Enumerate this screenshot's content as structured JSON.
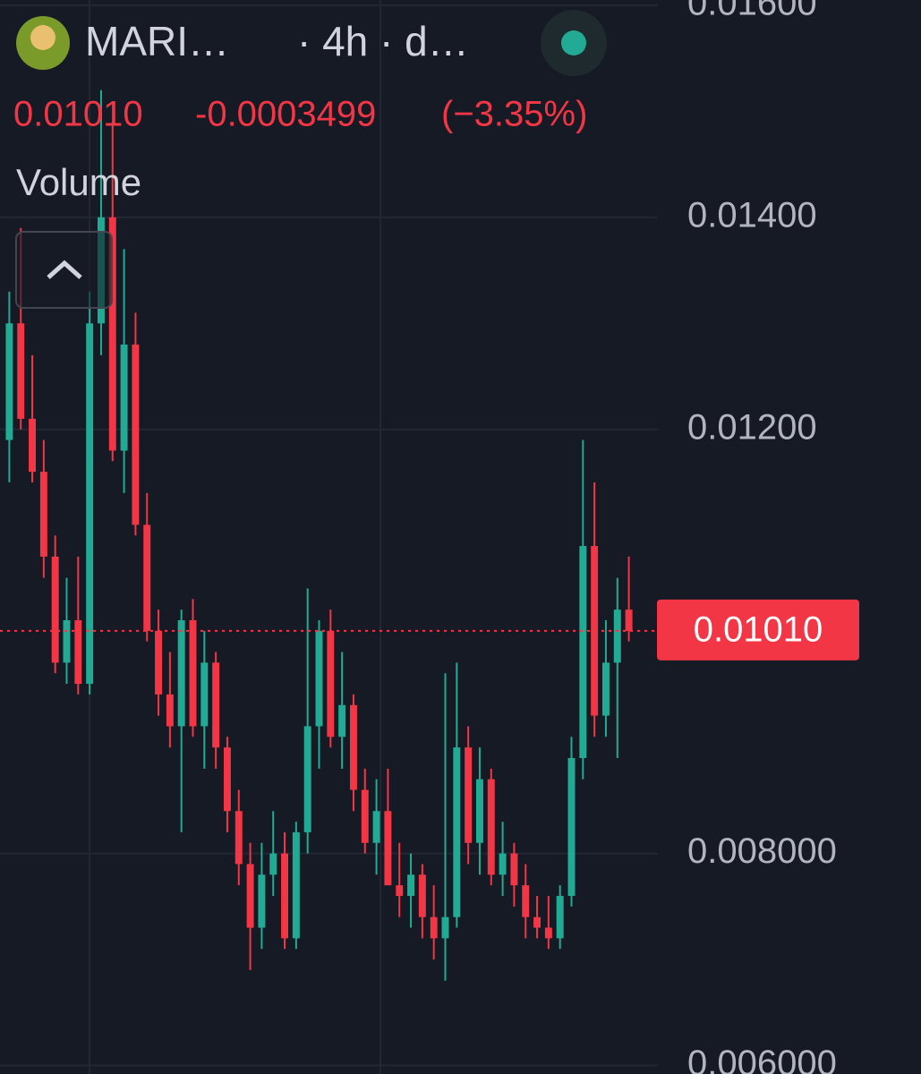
{
  "chart_data": {
    "type": "candlestick",
    "symbol": "MARI…",
    "details": "· 4h · d…",
    "last_price": {
      "value": 0.0101,
      "label": "0.01010"
    },
    "change": {
      "value": -0.0003499,
      "label": "-0.0003499"
    },
    "change_percent": {
      "value": -3.35,
      "label": "(−3.35%)"
    },
    "indicator": "Volume",
    "up_color": "#22ab94",
    "down_color": "#f23645",
    "ylim": [
      0.00592,
      0.01605
    ],
    "yticks": [
      {
        "value": 0.016,
        "label": "0.01600"
      },
      {
        "value": 0.014,
        "label": "0.01400"
      },
      {
        "value": 0.012,
        "label": "0.01200"
      },
      {
        "value": 0.008,
        "label": "0.008000"
      },
      {
        "value": 0.006,
        "label": "0.006000"
      }
    ],
    "grid": true,
    "open": [
      0.0119,
      0.013,
      0.0121,
      0.0116,
      0.0108,
      0.0098,
      0.0102,
      0.0096,
      0.013,
      0.014,
      0.0118,
      0.0128,
      0.0111,
      0.0101,
      0.0095,
      0.0092,
      0.0102,
      0.0092,
      0.0098,
      0.009,
      0.0084,
      0.0079,
      0.0073,
      0.0078,
      0.008,
      0.0072,
      0.0082,
      0.0092,
      0.0101,
      0.0091,
      0.0094,
      0.0086,
      0.0081,
      0.0084,
      0.0077,
      0.0076,
      0.0078,
      0.0074,
      0.0072,
      0.0074,
      0.009,
      0.0081,
      0.0087,
      0.0078,
      0.008,
      0.0077,
      0.0074,
      0.0073,
      0.0072,
      0.0076,
      0.0089,
      0.0109,
      0.0093,
      0.0098,
      0.0103
    ],
    "high": [
      0.0133,
      0.0139,
      0.0127,
      0.0119,
      0.011,
      0.0106,
      0.0108,
      0.0133,
      0.0152,
      0.0149,
      0.0137,
      0.0131,
      0.0114,
      0.0103,
      0.0099,
      0.0103,
      0.0104,
      0.0101,
      0.0099,
      0.0091,
      0.0086,
      0.0081,
      0.0081,
      0.0084,
      0.0082,
      0.0083,
      0.0105,
      0.0102,
      0.0103,
      0.0099,
      0.0095,
      0.0088,
      0.0087,
      0.0088,
      0.0081,
      0.008,
      0.0079,
      0.0077,
      0.0097,
      0.0098,
      0.0092,
      0.009,
      0.0088,
      0.0083,
      0.0081,
      0.0079,
      0.0076,
      0.0076,
      0.0077,
      0.0091,
      0.0119,
      0.0115,
      0.0102,
      0.0106,
      0.0108
    ],
    "low": [
      0.0115,
      0.012,
      0.0115,
      0.0106,
      0.0097,
      0.0096,
      0.0095,
      0.0095,
      0.0127,
      0.0117,
      0.0114,
      0.011,
      0.01,
      0.0093,
      0.009,
      0.0082,
      0.0091,
      0.0088,
      0.0088,
      0.0082,
      0.0077,
      0.0069,
      0.0071,
      0.0076,
      0.0071,
      0.0071,
      0.008,
      0.0088,
      0.009,
      0.0088,
      0.0084,
      0.008,
      0.0078,
      0.0077,
      0.0074,
      0.0073,
      0.0072,
      0.007,
      0.0068,
      0.0073,
      0.0079,
      0.0078,
      0.0077,
      0.0076,
      0.0075,
      0.0072,
      0.0072,
      0.0071,
      0.0071,
      0.0075,
      0.0087,
      0.0091,
      0.0091,
      0.0089,
      0.01
    ],
    "close": [
      0.013,
      0.0121,
      0.0116,
      0.0108,
      0.0098,
      0.0102,
      0.0096,
      0.013,
      0.014,
      0.0118,
      0.0128,
      0.0111,
      0.0101,
      0.0095,
      0.0092,
      0.0102,
      0.0092,
      0.0098,
      0.009,
      0.0084,
      0.0079,
      0.0073,
      0.0078,
      0.008,
      0.0072,
      0.0082,
      0.0092,
      0.0101,
      0.0091,
      0.0094,
      0.0086,
      0.0081,
      0.0084,
      0.0077,
      0.0076,
      0.0078,
      0.0074,
      0.0072,
      0.0074,
      0.009,
      0.0081,
      0.0087,
      0.0078,
      0.008,
      0.0077,
      0.0074,
      0.0073,
      0.0072,
      0.0076,
      0.0089,
      0.0109,
      0.0093,
      0.0098,
      0.0103,
      0.0101
    ]
  }
}
